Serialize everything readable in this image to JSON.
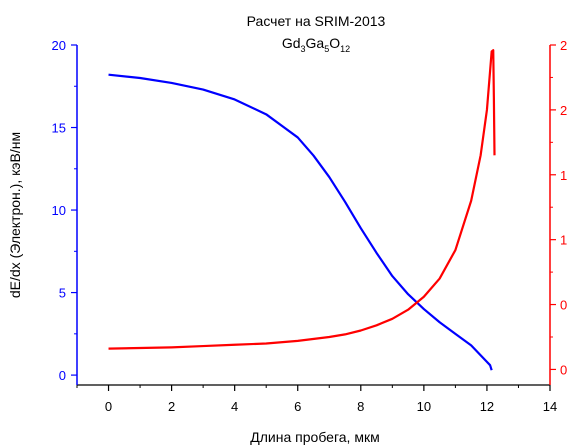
{
  "chart_data": {
    "type": "line",
    "title": "Расчет на SRIM-2013",
    "subtitle": {
      "base1": "Gd",
      "sub1": "3",
      "base2": "Ga",
      "sub2": "5",
      "base3": "O",
      "sub3": "12"
    },
    "xlabel": "Длина пробега, мкм",
    "ylabel_left": "dE/dx (Электрон.), кэВ/нм",
    "xlim": [
      -1,
      14
    ],
    "ylim_left": [
      -0.6,
      20
    ],
    "ylim_right": [
      -0.12,
      2.5
    ],
    "x_ticks": [
      "0",
      "2",
      "4",
      "6",
      "8",
      "10",
      "12",
      "14"
    ],
    "y_ticks_left": [
      "0",
      "5",
      "10",
      "15",
      "20"
    ],
    "y_ticks_right": [
      "0",
      "0",
      "1",
      "1",
      "2",
      "2"
    ],
    "series": [
      {
        "axis": "left",
        "color": "#0000ff",
        "x": [
          0,
          1,
          2,
          3,
          4,
          5,
          6,
          6.5,
          7,
          7.5,
          8,
          8.5,
          9,
          9.5,
          10,
          10.5,
          11,
          11.5,
          12,
          12.1,
          12.15
        ],
        "y": [
          18.2,
          18.0,
          17.7,
          17.3,
          16.7,
          15.8,
          14.4,
          13.3,
          12.0,
          10.5,
          8.9,
          7.4,
          6.0,
          4.9,
          4.0,
          3.2,
          2.5,
          1.8,
          0.8,
          0.6,
          0.3
        ]
      },
      {
        "axis": "right",
        "color": "#ff0000",
        "x": [
          0,
          1,
          2,
          3,
          4,
          5,
          6,
          7,
          7.5,
          8,
          8.5,
          9,
          9.5,
          10,
          10.5,
          11,
          11.5,
          11.8,
          12.0,
          12.1,
          12.15,
          12.2,
          12.22,
          12.24
        ],
        "y": [
          0.16,
          0.165,
          0.17,
          0.18,
          0.19,
          0.2,
          0.22,
          0.25,
          0.27,
          0.3,
          0.34,
          0.39,
          0.46,
          0.56,
          0.7,
          0.92,
          1.3,
          1.65,
          2.0,
          2.3,
          2.45,
          2.46,
          2.1,
          1.65
        ]
      }
    ],
    "grid": false
  }
}
